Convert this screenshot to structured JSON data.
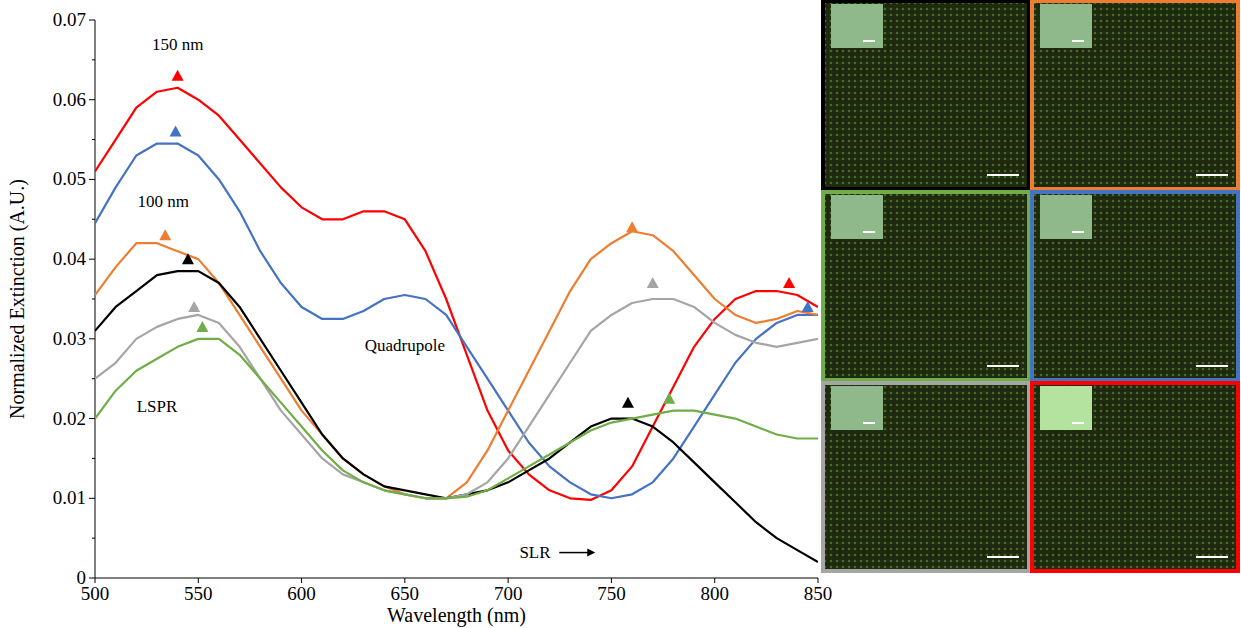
{
  "chart_data": {
    "type": "line",
    "marker": "triangle",
    "y_label": "Normalized Extinction (A.U.)",
    "x_label": "Wavelength (nm)",
    "annotations": [
      "150 nm",
      "100 nm",
      "Quadrupole",
      "LSPR",
      "SLR"
    ],
    "xlim": [
      500,
      850
    ],
    "xticks": [
      500,
      550,
      600,
      650,
      700,
      750,
      800,
      850
    ],
    "ylim": [
      0,
      0.07
    ],
    "yticks": [
      0,
      0.01,
      0.02,
      0.03,
      0.04,
      0.05,
      0.06,
      0.07
    ],
    "x": [
      500,
      510,
      520,
      530,
      540,
      550,
      560,
      570,
      580,
      590,
      600,
      610,
      620,
      630,
      640,
      650,
      660,
      670,
      680,
      690,
      700,
      710,
      720,
      730,
      740,
      750,
      760,
      770,
      780,
      790,
      800,
      810,
      820,
      830,
      840,
      850
    ],
    "series": [
      {
        "color": "#ff0000",
        "values": [
          0.051,
          0.055,
          0.059,
          0.061,
          0.0615,
          0.06,
          0.058,
          0.055,
          0.052,
          0.049,
          0.0465,
          0.045,
          0.045,
          0.046,
          0.046,
          0.045,
          0.041,
          0.035,
          0.028,
          0.021,
          0.016,
          0.013,
          0.011,
          0.01,
          0.0098,
          0.011,
          0.014,
          0.019,
          0.024,
          0.029,
          0.0325,
          0.035,
          0.036,
          0.036,
          0.0355,
          0.034
        ],
        "peak_x": [
          540,
          836
        ],
        "peak_values": [
          0.063,
          0.037
        ]
      },
      {
        "color": "#4472c4",
        "values": [
          0.0445,
          0.049,
          0.053,
          0.0545,
          0.0545,
          0.053,
          0.05,
          0.046,
          0.041,
          0.037,
          0.034,
          0.0325,
          0.0325,
          0.0335,
          0.035,
          0.0355,
          0.035,
          0.033,
          0.029,
          0.025,
          0.021,
          0.017,
          0.014,
          0.012,
          0.0105,
          0.01,
          0.0105,
          0.012,
          0.015,
          0.019,
          0.023,
          0.027,
          0.03,
          0.032,
          0.033,
          0.033
        ],
        "peak_x": [
          539,
          845
        ],
        "peak_values": [
          0.056,
          0.034
        ]
      },
      {
        "color": "#ed7d31",
        "values": [
          0.0355,
          0.039,
          0.042,
          0.042,
          0.041,
          0.04,
          0.037,
          0.033,
          0.029,
          0.025,
          0.021,
          0.018,
          0.015,
          0.013,
          0.0115,
          0.0105,
          0.01,
          0.01,
          0.012,
          0.016,
          0.021,
          0.026,
          0.031,
          0.036,
          0.04,
          0.042,
          0.0435,
          0.043,
          0.041,
          0.038,
          0.035,
          0.033,
          0.032,
          0.0325,
          0.0335,
          0.033
        ],
        "peak_x": [
          534,
          760
        ],
        "peak_values": [
          0.043,
          0.044
        ]
      },
      {
        "color": "#000000",
        "values": [
          0.031,
          0.034,
          0.036,
          0.038,
          0.0385,
          0.0385,
          0.037,
          0.034,
          0.03,
          0.026,
          0.022,
          0.018,
          0.015,
          0.013,
          0.0115,
          0.011,
          0.0105,
          0.01,
          0.0105,
          0.011,
          0.012,
          0.0135,
          0.015,
          0.017,
          0.019,
          0.02,
          0.02,
          0.019,
          0.017,
          0.0145,
          0.012,
          0.0095,
          0.007,
          0.005,
          0.0035,
          0.002
        ],
        "peak_x": [
          545,
          758
        ],
        "peak_values": [
          0.04,
          0.022
        ]
      },
      {
        "color": "#a5a5a5",
        "values": [
          0.025,
          0.027,
          0.03,
          0.0315,
          0.0325,
          0.033,
          0.032,
          0.029,
          0.025,
          0.021,
          0.018,
          0.015,
          0.013,
          0.012,
          0.011,
          0.0105,
          0.01,
          0.01,
          0.0105,
          0.012,
          0.015,
          0.019,
          0.023,
          0.027,
          0.031,
          0.033,
          0.0345,
          0.035,
          0.035,
          0.034,
          0.032,
          0.0305,
          0.0295,
          0.029,
          0.0295,
          0.03
        ],
        "peak_x": [
          548,
          770
        ],
        "peak_values": [
          0.034,
          0.037
        ]
      },
      {
        "color": "#70ad47",
        "values": [
          0.02,
          0.0235,
          0.026,
          0.0275,
          0.029,
          0.03,
          0.03,
          0.028,
          0.025,
          0.022,
          0.019,
          0.016,
          0.0135,
          0.012,
          0.011,
          0.0105,
          0.01,
          0.01,
          0.0102,
          0.011,
          0.0125,
          0.014,
          0.0155,
          0.017,
          0.0185,
          0.0195,
          0.02,
          0.0205,
          0.021,
          0.021,
          0.0205,
          0.02,
          0.019,
          0.018,
          0.0175,
          0.0175
        ],
        "peak_x": [
          552,
          778
        ],
        "peak_values": [
          0.0315,
          0.0225
        ]
      }
    ]
  }
}
